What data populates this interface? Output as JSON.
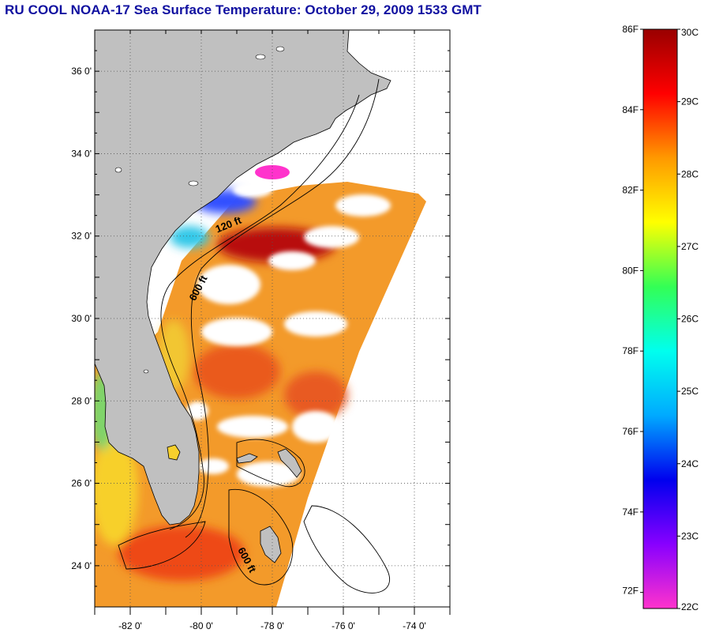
{
  "title": "RU COOL  NOAA-17  Sea Surface Temperature:  October 29, 2009 1533 GMT",
  "map": {
    "lon_range": [
      -83,
      -73
    ],
    "lat_range": [
      23,
      37
    ],
    "lat_tick_labels": [
      "24 0'",
      "26 0'",
      "28 0'",
      "30 0'",
      "32 0'",
      "34 0'",
      "36 0'"
    ],
    "lat_tick_values": [
      24,
      26,
      28,
      30,
      32,
      34,
      36
    ],
    "lon_tick_labels": [
      "-82 0'",
      "-80 0'",
      "-78 0'",
      "-76 0'",
      "-74 0'"
    ],
    "lon_tick_values": [
      -82,
      -80,
      -78,
      -76,
      -74
    ],
    "grid": true,
    "land_color": "#c0c0c0",
    "isobath_labels": [
      {
        "text": "120 ft",
        "lon": -79.2,
        "lat": 32.2
      },
      {
        "text": "600 ft",
        "lon": -80.0,
        "lat": 30.7
      },
      {
        "text": "600 ft",
        "lon": -78.8,
        "lat": 24.1
      }
    ]
  },
  "colorbar": {
    "fahrenheit_labels": [
      "86F",
      "84F",
      "82F",
      "80F",
      "78F",
      "76F",
      "74F",
      "72F"
    ],
    "celsius_labels": [
      "30C",
      "29C",
      "28C",
      "27C",
      "26C",
      "25C",
      "24C",
      "23C",
      "22C"
    ],
    "celsius_values": [
      30,
      29,
      28,
      27,
      26,
      25,
      24,
      23,
      22
    ],
    "range_c": [
      22,
      30
    ],
    "colors": [
      "#ff33cc",
      "#8800ff",
      "#0000ee",
      "#00aaff",
      "#00ffee",
      "#33ff55",
      "#ffff00",
      "#ff9900",
      "#ff0000",
      "#990000"
    ]
  }
}
